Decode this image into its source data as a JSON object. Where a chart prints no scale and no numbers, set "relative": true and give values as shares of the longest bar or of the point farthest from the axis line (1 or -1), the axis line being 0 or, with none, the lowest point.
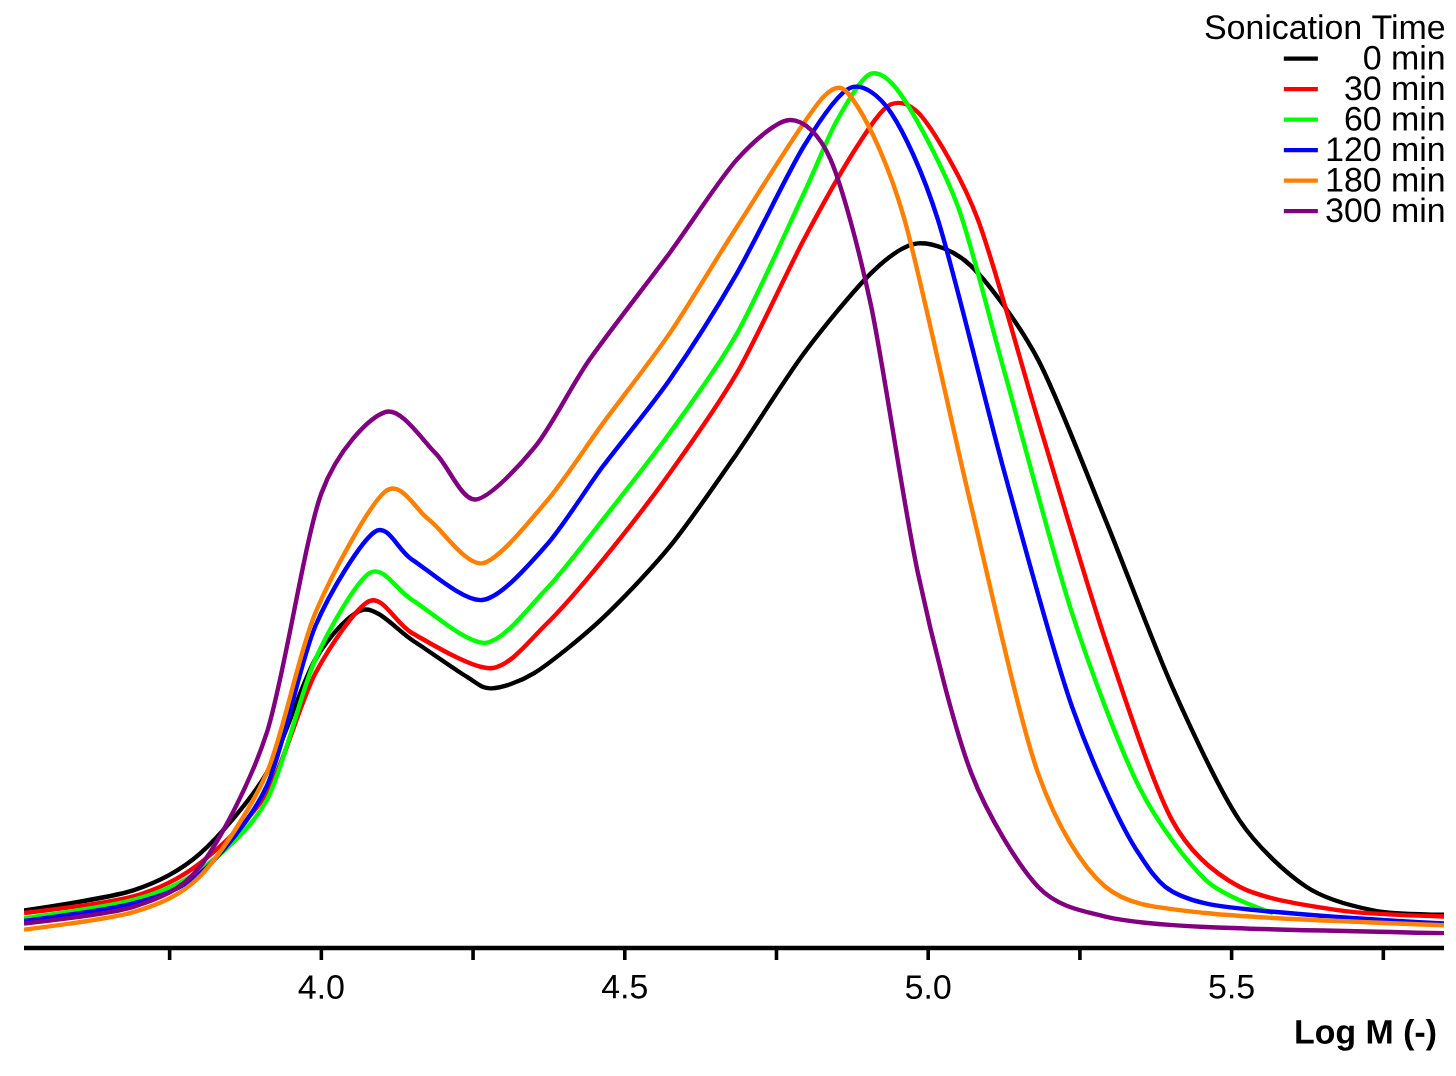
{
  "chart_data": {
    "type": "line",
    "xlabel": "Log M (-)",
    "legend_title": "Sonication Time",
    "relative": true,
    "legend": "top right",
    "marker": "none",
    "line_style": "solid",
    "xlim": [
      3.51,
      5.85
    ],
    "xticks": [
      {
        "value": 3.75,
        "label": null
      },
      {
        "value": 4,
        "label": "4.0"
      },
      {
        "value": 4.25,
        "label": null
      },
      {
        "value": 4.5,
        "label": "4.5"
      },
      {
        "value": 4.75,
        "label": null
      },
      {
        "value": 5,
        "label": "5.0"
      },
      {
        "value": 5.25,
        "label": null
      },
      {
        "value": 5.5,
        "label": "5.5"
      },
      {
        "value": 5.75,
        "label": null
      }
    ],
    "series": [
      {
        "name": "0  min",
        "color": "#000000",
        "x": [
          3.51,
          3.69,
          3.8,
          3.91,
          3.99,
          4.07,
          4.15,
          4.24,
          4.28,
          4.35,
          4.46,
          4.574,
          4.685,
          4.795,
          4.906,
          4.983,
          5.071,
          5.181,
          5.292,
          5.402,
          5.513,
          5.623,
          5.733,
          5.85
        ],
        "values": [
          0.043,
          0.066,
          0.108,
          0.2,
          0.33,
          0.387,
          0.352,
          0.31,
          0.297,
          0.314,
          0.375,
          0.459,
          0.566,
          0.68,
          0.772,
          0.806,
          0.78,
          0.673,
          0.49,
          0.299,
          0.146,
          0.07,
          0.043,
          0.038
        ]
      },
      {
        "name": "30 min",
        "color": "#ff0000",
        "x": [
          3.51,
          3.69,
          3.8,
          3.91,
          3.99,
          4.08,
          4.15,
          4.28,
          4.37,
          4.464,
          4.574,
          4.685,
          4.795,
          4.883,
          4.939,
          4.994,
          5.082,
          5.181,
          5.292,
          5.402,
          5.513,
          5.678,
          5.85
        ],
        "values": [
          0.04,
          0.059,
          0.097,
          0.177,
          0.314,
          0.397,
          0.36,
          0.32,
          0.37,
          0.444,
          0.543,
          0.658,
          0.81,
          0.917,
          0.965,
          0.947,
          0.833,
          0.604,
          0.352,
          0.146,
          0.07,
          0.043,
          0.036
        ]
      },
      {
        "name": "60 min",
        "color": "#00ff00",
        "x": [
          3.51,
          3.69,
          3.8,
          3.91,
          3.99,
          4.08,
          4.15,
          4.27,
          4.37,
          4.464,
          4.574,
          4.685,
          4.795,
          4.85,
          4.906,
          4.961,
          5.049,
          5.126,
          5.237,
          5.347,
          5.457,
          5.568
        ],
        "values": [
          0.034,
          0.055,
          0.089,
          0.169,
          0.33,
          0.429,
          0.398,
          0.349,
          0.41,
          0.49,
          0.589,
          0.703,
          0.863,
          0.947,
          1.0,
          0.97,
          0.848,
          0.658,
          0.383,
          0.185,
          0.078,
          0.04
        ]
      },
      {
        "name": "120 min",
        "color": "#0000ff",
        "x": [
          3.51,
          3.69,
          3.8,
          3.91,
          3.99,
          4.088,
          4.15,
          4.265,
          4.37,
          4.464,
          4.574,
          4.685,
          4.795,
          4.872,
          4.939,
          5.016,
          5.126,
          5.237,
          5.347,
          5.457,
          5.85
        ],
        "values": [
          0.031,
          0.051,
          0.085,
          0.185,
          0.368,
          0.476,
          0.444,
          0.398,
          0.46,
          0.551,
          0.65,
          0.772,
          0.917,
          0.984,
          0.955,
          0.833,
          0.543,
          0.276,
          0.108,
          0.051,
          0.028
        ]
      },
      {
        "name": "180 min",
        "color": "#ff8000",
        "x": [
          3.51,
          3.69,
          3.8,
          3.91,
          3.99,
          4.105,
          4.177,
          4.265,
          4.37,
          4.464,
          4.574,
          4.685,
          4.828,
          4.883,
          4.961,
          5.071,
          5.181,
          5.292,
          5.457,
          5.85
        ],
        "values": [
          0.021,
          0.041,
          0.082,
          0.2,
          0.383,
          0.522,
          0.49,
          0.44,
          0.51,
          0.6,
          0.703,
          0.825,
          0.974,
          0.963,
          0.833,
          0.505,
          0.2,
          0.07,
          0.04,
          0.026
        ]
      },
      {
        "name": "300 min",
        "color": "#800080",
        "x": [
          3.51,
          3.69,
          3.8,
          3.91,
          4.0,
          4.105,
          4.188,
          4.254,
          4.353,
          4.442,
          4.574,
          4.685,
          4.773,
          4.839,
          4.906,
          4.983,
          5.071,
          5.181,
          5.292,
          5.457,
          5.85
        ],
        "values": [
          0.028,
          0.047,
          0.093,
          0.246,
          0.52,
          0.613,
          0.566,
          0.513,
          0.574,
          0.673,
          0.795,
          0.902,
          0.947,
          0.902,
          0.734,
          0.429,
          0.2,
          0.07,
          0.036,
          0.024,
          0.017
        ]
      }
    ]
  }
}
